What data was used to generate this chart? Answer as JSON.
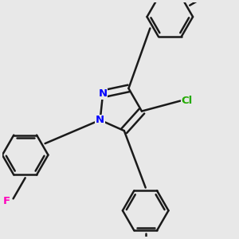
{
  "background_color": "#e8e8e8",
  "bond_color": "#1a1a1a",
  "bond_width": 1.8,
  "atom_labels": {
    "N": {
      "color": "#0000ff",
      "fontsize": 9.5
    },
    "Cl": {
      "color": "#22aa00",
      "fontsize": 9.5
    },
    "F": {
      "color": "#ff00bb",
      "fontsize": 9.5
    }
  },
  "figsize": [
    3.0,
    3.0
  ],
  "dpi": 100
}
